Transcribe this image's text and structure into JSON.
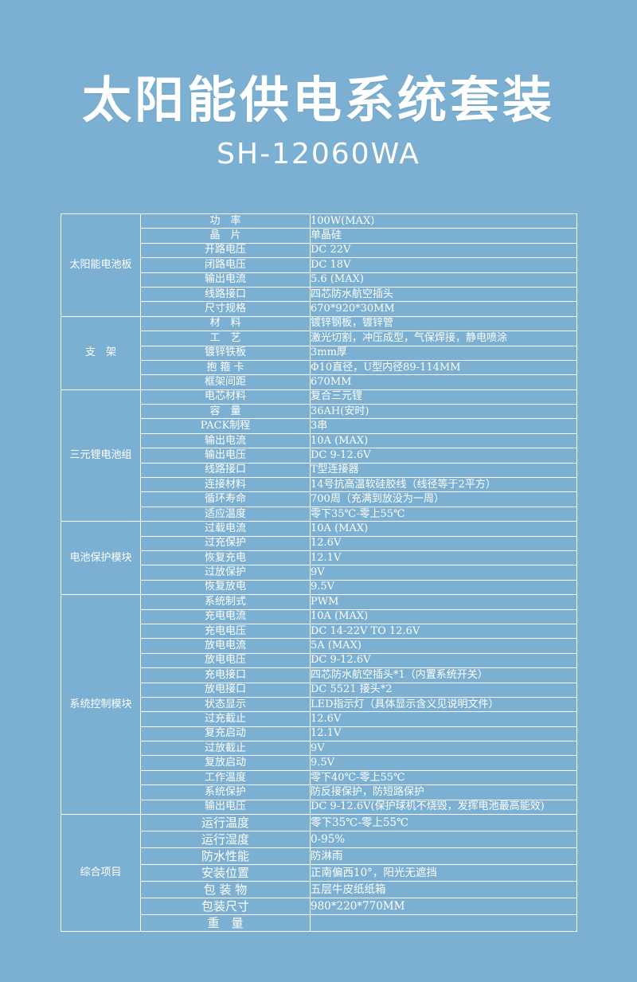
{
  "header": {
    "title": "太阳能供电系统套装",
    "model": "SH-12060WA"
  },
  "spec_table": {
    "groups": [
      {
        "name": "太阳能电池板",
        "rows": [
          {
            "item": "功　率",
            "value": "100W(MAX)"
          },
          {
            "item": "晶　片",
            "value": "单晶硅"
          },
          {
            "item": "开路电压",
            "value": "DC 22V"
          },
          {
            "item": "闭路电压",
            "value": "DC 18V"
          },
          {
            "item": "输出电流",
            "value": "5.6 (MAX)"
          },
          {
            "item": "线路接口",
            "value": "四芯防水航空插头"
          },
          {
            "item": "尺寸规格",
            "value": "670*920*30MM"
          }
        ]
      },
      {
        "name": "支　架",
        "rows": [
          {
            "item": "材　料",
            "value": "镀锌钢板，镀锌管"
          },
          {
            "item": "工　艺",
            "value": "激光切割，冲压成型，气保焊接，静电喷涂"
          },
          {
            "item": "镀锌铁板",
            "value": "3mm厚"
          },
          {
            "item": "抱 箍 卡",
            "value": "Φ10直径，U型内径89-114MM"
          },
          {
            "item": "框架间距",
            "value": "670MM"
          }
        ]
      },
      {
        "name": "三元锂电池组",
        "rows": [
          {
            "item": "电芯材料",
            "value": "复合三元锂"
          },
          {
            "item": "容　量",
            "value": "36AH(安时)"
          },
          {
            "item": "PACK制程",
            "value": "3串"
          },
          {
            "item": "输出电流",
            "value": "10A (MAX)"
          },
          {
            "item": "输出电压",
            "value": "DC 9-12.6V"
          },
          {
            "item": "线路接口",
            "value": "T型连接器"
          },
          {
            "item": "连接材料",
            "value": "14号抗高温软硅胶线（线径等于2平方）"
          },
          {
            "item": "循环寿命",
            "value": "700周（充满到放没为一周）"
          },
          {
            "item": "适应温度",
            "value": "零下35℃-零上55℃"
          }
        ]
      },
      {
        "name": "电池保护模块",
        "rows": [
          {
            "item": "过载电流",
            "value": "10A (MAX)"
          },
          {
            "item": "过充保护",
            "value": "12.6V"
          },
          {
            "item": "恢复充电",
            "value": "12.1V"
          },
          {
            "item": "过放保护",
            "value": "9V"
          },
          {
            "item": "恢复放电",
            "value": "9.5V"
          }
        ]
      },
      {
        "name": "系统控制模块",
        "rows": [
          {
            "item": "系统制式",
            "value": "PWM"
          },
          {
            "item": "充电电流",
            "value": "10A (MAX)"
          },
          {
            "item": "充电电压",
            "value": "DC 14-22V TO 12.6V"
          },
          {
            "item": "放电电流",
            "value": "5A (MAX)"
          },
          {
            "item": "放电电压",
            "value": "DC 9-12.6V"
          },
          {
            "item": "充电接口",
            "value": "四芯防水航空插头*1（内置系统开关）"
          },
          {
            "item": "放电接口",
            "value": "DC 5521 接头*2"
          },
          {
            "item": "状态显示",
            "value": "LED指示灯（具体显示含义见说明文件）"
          },
          {
            "item": "过充截止",
            "value": "12.6V"
          },
          {
            "item": "复充启动",
            "value": "12.1V"
          },
          {
            "item": "过放截止",
            "value": "9V"
          },
          {
            "item": "复放启动",
            "value": "9.5V"
          },
          {
            "item": "工作温度",
            "value": "零下40℃-零上55℃"
          },
          {
            "item": "系统保护",
            "value": "防反接保护，防短路保护"
          },
          {
            "item": "输出电压",
            "value": "DC 9-12.6V(保护球机不烧毁，发挥电池最高能效)"
          }
        ]
      },
      {
        "name": "综合项目",
        "rows": [
          {
            "item": "运行温度",
            "value": "零下35℃-零上55℃"
          },
          {
            "item": "运行湿度",
            "value": "0-95%"
          },
          {
            "item": "防水性能",
            "value": "防淋雨"
          },
          {
            "item": "安装位置",
            "value": "正南偏西10°，阳光无遮挡"
          },
          {
            "item": "包 装 物",
            "value": "五层牛皮纸纸箱"
          },
          {
            "item": "包装尺寸",
            "value": "980*220*770MM"
          },
          {
            "item": "重　量",
            "value": ""
          }
        ]
      }
    ]
  }
}
